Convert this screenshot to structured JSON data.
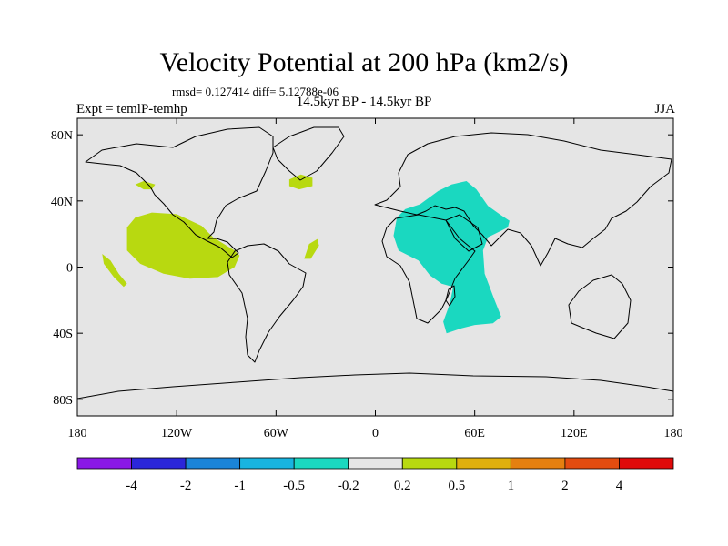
{
  "title": "Velocity Potential at 200 hPa (km2/s)",
  "stats": "rmsd= 0.127414 diff= 5.12788e-06",
  "subtitle": "14.5kyr BP - 14.5kyr BP",
  "experiment": "Expt = temlP-temhp",
  "season": "JJA",
  "map": {
    "projection": "cylindrical equidistant",
    "background_color": "#e5e5e5",
    "lon_range": [
      -180,
      180
    ],
    "lat_range": [
      -90,
      90
    ],
    "x_ticks": [
      {
        "lon": -180,
        "label": "180"
      },
      {
        "lon": -120,
        "label": "120W"
      },
      {
        "lon": -60,
        "label": "60W"
      },
      {
        "lon": 0,
        "label": "0"
      },
      {
        "lon": 60,
        "label": "60E"
      },
      {
        "lon": 120,
        "label": "120E"
      },
      {
        "lon": 180,
        "label": "180"
      }
    ],
    "y_ticks": [
      {
        "lat": 80,
        "label": "80N"
      },
      {
        "lat": 40,
        "label": "40N"
      },
      {
        "lat": 0,
        "label": "0"
      },
      {
        "lat": -40,
        "label": "40S"
      },
      {
        "lat": -80,
        "label": "80S"
      }
    ],
    "regions": [
      {
        "name": "north-pacific-small",
        "bin": "0.2 to 0.5",
        "color": "#b8d910",
        "points": [
          [
            -145,
            50
          ],
          [
            -140,
            47
          ],
          [
            -135,
            47
          ],
          [
            -133,
            50
          ],
          [
            -140,
            52
          ]
        ]
      },
      {
        "name": "east-pacific",
        "bin": "0.2 to 0.5",
        "color": "#b8d910",
        "points": [
          [
            -150,
            24
          ],
          [
            -145,
            30
          ],
          [
            -135,
            33
          ],
          [
            -120,
            32
          ],
          [
            -105,
            25
          ],
          [
            -98,
            18
          ],
          [
            -85,
            10
          ],
          [
            -82,
            7
          ],
          [
            -85,
            0
          ],
          [
            -95,
            -6
          ],
          [
            -112,
            -7
          ],
          [
            -128,
            -4
          ],
          [
            -142,
            2
          ],
          [
            -150,
            10
          ]
        ]
      },
      {
        "name": "tropical-pacific-streak",
        "bin": "0.2 to 0.5",
        "color": "#b8d910",
        "points": [
          [
            -165,
            8
          ],
          [
            -160,
            4
          ],
          [
            -155,
            -4
          ],
          [
            -150,
            -10
          ],
          [
            -152,
            -12
          ],
          [
            -158,
            -6
          ],
          [
            -164,
            2
          ]
        ]
      },
      {
        "name": "north-atlantic",
        "bin": "0.2 to 0.5",
        "color": "#b8d910",
        "points": [
          [
            -52,
            53
          ],
          [
            -45,
            56
          ],
          [
            -38,
            54
          ],
          [
            -38,
            49
          ],
          [
            -46,
            47
          ],
          [
            -52,
            49
          ]
        ]
      },
      {
        "name": "tropical-atlantic",
        "bin": "0.2 to 0.5",
        "color": "#b8d910",
        "points": [
          [
            -40,
            14
          ],
          [
            -35,
            17
          ],
          [
            -34,
            13
          ],
          [
            -39,
            5
          ],
          [
            -43,
            5
          ]
        ]
      },
      {
        "name": "africa-indian-ocean",
        "bin": "-0.5 to -0.2",
        "color": "#1ad8c0",
        "points": [
          [
            11,
            19
          ],
          [
            13,
            30
          ],
          [
            18,
            35
          ],
          [
            27,
            38
          ],
          [
            38,
            46
          ],
          [
            46,
            50
          ],
          [
            55,
            52
          ],
          [
            61,
            47
          ],
          [
            68,
            37
          ],
          [
            75,
            32
          ],
          [
            81,
            28
          ],
          [
            80,
            24
          ],
          [
            68,
            18
          ],
          [
            65,
            10
          ],
          [
            66,
            -4
          ],
          [
            72,
            -20
          ],
          [
            76,
            -30
          ],
          [
            71,
            -34
          ],
          [
            60,
            -35
          ],
          [
            52,
            -37
          ],
          [
            43,
            -40
          ],
          [
            41,
            -33
          ],
          [
            45,
            -22
          ],
          [
            47,
            -12
          ],
          [
            40,
            -10
          ],
          [
            33,
            -5
          ],
          [
            26,
            4
          ],
          [
            20,
            7
          ],
          [
            14,
            10
          ]
        ]
      }
    ]
  },
  "colorbar": {
    "colors": [
      "#8a18e6",
      "#2b26d9",
      "#1a84d8",
      "#18b4e0",
      "#1ad8c0",
      "#e6e6e6",
      "#b8d910",
      "#e0b00d",
      "#e58010",
      "#e34c10",
      "#e00a0a"
    ],
    "labels": [
      "-4",
      "-2",
      "-1",
      "-0.5",
      "-0.2",
      "0.2",
      "0.5",
      "1",
      "2",
      "4"
    ]
  }
}
